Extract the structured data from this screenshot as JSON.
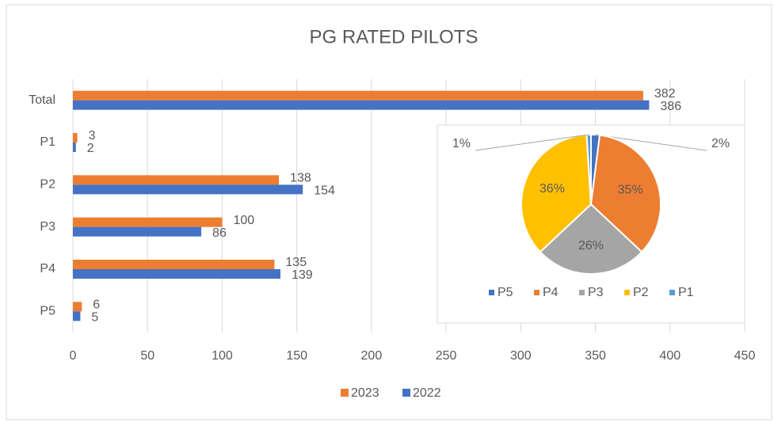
{
  "chart_data": [
    {
      "type": "hbar",
      "title": "PG RATED PILOTS",
      "categories": [
        "Total",
        "P1",
        "P2",
        "P3",
        "P4",
        "P5"
      ],
      "series": [
        {
          "name": "2023",
          "color": "#ed7d31",
          "values": [
            382,
            3,
            138,
            100,
            135,
            6
          ]
        },
        {
          "name": "2022",
          "color": "#4472c4",
          "values": [
            386,
            2,
            154,
            86,
            139,
            5
          ]
        }
      ],
      "xlim": [
        0,
        450
      ],
      "xticks": [
        0,
        50,
        100,
        150,
        200,
        250,
        300,
        350,
        400,
        450
      ],
      "grid": true,
      "legend": "bottom"
    },
    {
      "type": "pie",
      "categories": [
        "P5",
        "P4",
        "P3",
        "P2",
        "P1"
      ],
      "values": [
        2,
        35,
        26,
        36,
        1
      ],
      "value_labels": [
        "2%",
        "35%",
        "26%",
        "36%",
        "1%"
      ],
      "colors": [
        "#4472c4",
        "#ed7d31",
        "#a5a5a5",
        "#ffc000",
        "#5b9bd5"
      ],
      "legend": "bottom"
    }
  ]
}
